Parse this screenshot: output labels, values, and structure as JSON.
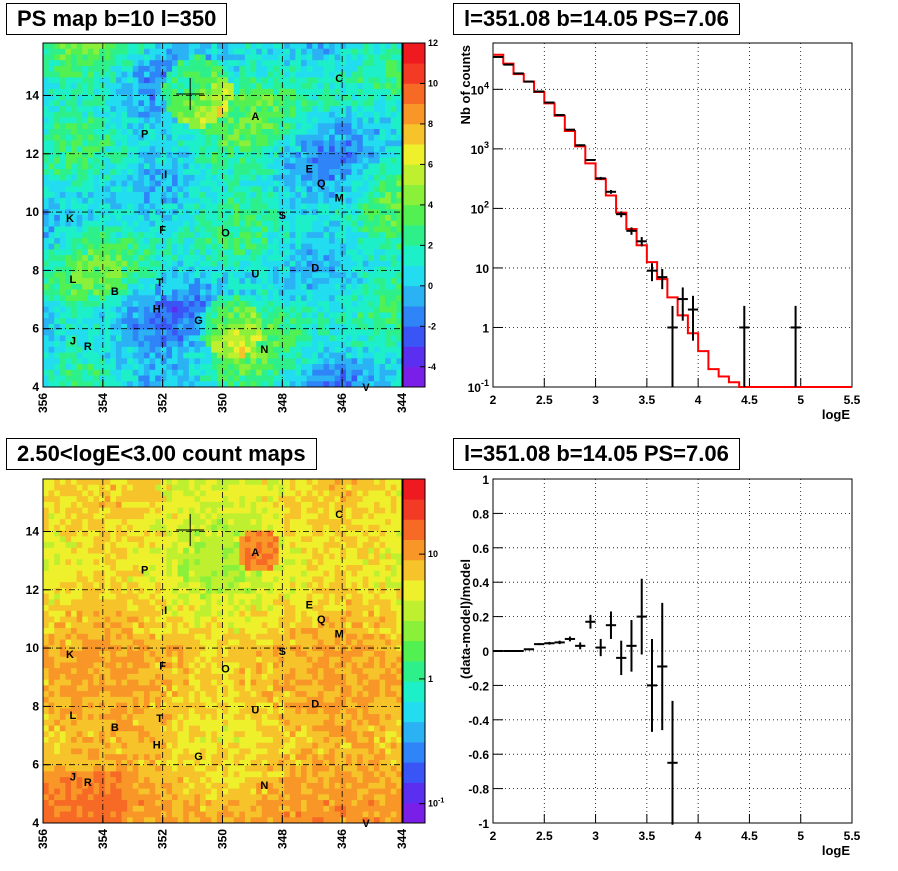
{
  "titles": {
    "map_top": "PS map b=10 l=350",
    "spectrum": "l=351.08 b=14.05 PS=7.06",
    "map_bottom": "2.50<logE<3.00 count maps",
    "residual": "l=351.08 b=14.05 PS=7.06"
  },
  "colors": {
    "model_line": "#ff0000",
    "data_points": "#000000",
    "grid": "#000000"
  },
  "chart_data": [
    {
      "type": "heatmap",
      "id": "ps_map",
      "title": "PS map b=10 l=350",
      "x_ticks": [
        "356",
        "354",
        "352",
        "350",
        "348",
        "346",
        "344"
      ],
      "x_range": [
        356,
        344
      ],
      "y_ticks": [
        "4",
        "6",
        "8",
        "10",
        "12",
        "14"
      ],
      "y_range": [
        4,
        15.8
      ],
      "colorbar": {
        "min": -5,
        "max": 12,
        "ticks": [
          "12",
          "10",
          "8",
          "6",
          "4",
          "2",
          "0",
          "-2",
          "-4"
        ]
      },
      "marker": {
        "l": 351.08,
        "b": 14.05
      },
      "sources": [
        {
          "name": "C",
          "l": 346.1,
          "b": 14.6
        },
        {
          "name": "A",
          "l": 348.9,
          "b": 13.3
        },
        {
          "name": "P",
          "l": 352.6,
          "b": 12.7
        },
        {
          "name": "E",
          "l": 347.1,
          "b": 11.5
        },
        {
          "name": "I",
          "l": 351.9,
          "b": 11.3
        },
        {
          "name": "Q",
          "l": 346.7,
          "b": 11.0
        },
        {
          "name": "M",
          "l": 346.1,
          "b": 10.5
        },
        {
          "name": "S",
          "l": 348.0,
          "b": 9.9
        },
        {
          "name": "K",
          "l": 355.1,
          "b": 9.8
        },
        {
          "name": "F",
          "l": 352.0,
          "b": 9.4
        },
        {
          "name": "O",
          "l": 349.9,
          "b": 9.3
        },
        {
          "name": "D",
          "l": 346.9,
          "b": 8.1
        },
        {
          "name": "U",
          "l": 348.9,
          "b": 7.9
        },
        {
          "name": "L",
          "l": 355.0,
          "b": 7.7
        },
        {
          "name": "T",
          "l": 352.1,
          "b": 7.6
        },
        {
          "name": "B",
          "l": 353.6,
          "b": 7.3
        },
        {
          "name": "H",
          "l": 352.2,
          "b": 6.7
        },
        {
          "name": "G",
          "l": 350.8,
          "b": 6.3
        },
        {
          "name": "J",
          "l": 355.0,
          "b": 5.6
        },
        {
          "name": "R",
          "l": 354.5,
          "b": 5.4
        },
        {
          "name": "N",
          "l": 348.6,
          "b": 5.3
        },
        {
          "name": "V",
          "l": 345.2,
          "b": 4.0
        }
      ]
    },
    {
      "type": "line",
      "id": "spectrum",
      "title": "l=351.08 b=14.05 PS=7.06",
      "xlabel": "logE",
      "ylabel": "Nb of counts",
      "xlim": [
        2,
        5.5
      ],
      "ylim": [
        0.1,
        60000
      ],
      "y_scale": "log",
      "grid": true,
      "x_ticks": [
        "2",
        "2.5",
        "3",
        "3.5",
        "4",
        "4.5",
        "5",
        "5.5"
      ],
      "y_ticks": [
        "10^-1",
        "1",
        "10",
        "10^2",
        "10^3",
        "10^4"
      ],
      "series": [
        {
          "type": "step",
          "x_edges": [
            2.0,
            2.1,
            2.2,
            2.3,
            2.4,
            2.5,
            2.6,
            2.7,
            2.8,
            2.9,
            3.0,
            3.1,
            3.2,
            3.3,
            3.4,
            3.5,
            3.6,
            3.7,
            3.8,
            3.9,
            4.0,
            4.1,
            4.2,
            4.3,
            4.4,
            4.5,
            5.5
          ],
          "values": [
            38000,
            27000,
            18000,
            13500,
            9000,
            5800,
            3600,
            2000,
            1100,
            570,
            310,
            165,
            85,
            45,
            24,
            12.5,
            6.5,
            3.2,
            1.6,
            0.8,
            0.4,
            0.2,
            0.15,
            0.12,
            0.1,
            0.1
          ]
        },
        {
          "type": "errorbars",
          "points": [
            {
              "x": 2.05,
              "y": 35000,
              "lo": 34800,
              "hi": 35200
            },
            {
              "x": 2.15,
              "y": 26000,
              "lo": 25800,
              "hi": 26200
            },
            {
              "x": 2.25,
              "y": 18500,
              "lo": 18300,
              "hi": 18700
            },
            {
              "x": 2.35,
              "y": 13500,
              "lo": 13350,
              "hi": 13650
            },
            {
              "x": 2.45,
              "y": 9200,
              "lo": 9100,
              "hi": 9300
            },
            {
              "x": 2.55,
              "y": 6000,
              "lo": 5920,
              "hi": 6080
            },
            {
              "x": 2.65,
              "y": 3700,
              "lo": 3640,
              "hi": 3760
            },
            {
              "x": 2.75,
              "y": 2100,
              "lo": 2050,
              "hi": 2150
            },
            {
              "x": 2.85,
              "y": 1150,
              "lo": 1110,
              "hi": 1190
            },
            {
              "x": 2.95,
              "y": 650,
              "lo": 625,
              "hi": 675
            },
            {
              "x": 3.05,
              "y": 320,
              "lo": 302,
              "hi": 338
            },
            {
              "x": 3.15,
              "y": 190,
              "lo": 176,
              "hi": 204
            },
            {
              "x": 3.25,
              "y": 80,
              "lo": 71,
              "hi": 89
            },
            {
              "x": 3.35,
              "y": 42,
              "lo": 36,
              "hi": 48
            },
            {
              "x": 3.45,
              "y": 28,
              "lo": 23,
              "hi": 33
            },
            {
              "x": 3.55,
              "y": 9,
              "lo": 6,
              "hi": 12
            },
            {
              "x": 3.65,
              "y": 7,
              "lo": 4.4,
              "hi": 9.6
            },
            {
              "x": 3.75,
              "y": 1,
              "lo": 0.1,
              "hi": 2.3
            },
            {
              "x": 3.85,
              "y": 3,
              "lo": 1.3,
              "hi": 4.7
            },
            {
              "x": 3.95,
              "y": 2,
              "lo": 0.6,
              "hi": 3.4
            },
            {
              "x": 4.45,
              "y": 1,
              "lo": 0.1,
              "hi": 2.3
            },
            {
              "x": 4.95,
              "y": 1,
              "lo": 0.1,
              "hi": 2.3
            }
          ]
        }
      ]
    },
    {
      "type": "heatmap",
      "id": "count_map",
      "title": "2.50<logE<3.00 count maps",
      "x_ticks": [
        "356",
        "354",
        "352",
        "350",
        "348",
        "346",
        "344"
      ],
      "x_range": [
        356,
        344
      ],
      "y_ticks": [
        "4",
        "6",
        "8",
        "10",
        "12",
        "14"
      ],
      "y_range": [
        4,
        15.8
      ],
      "colorbar": {
        "scale": "log",
        "min": 0.07,
        "max": 40,
        "ticks": [
          "10",
          "1",
          "10^-1"
        ]
      },
      "marker": {
        "l": 351.08,
        "b": 14.05
      },
      "same_sources_as": "ps_map"
    },
    {
      "type": "scatter",
      "id": "residual",
      "title": "l=351.08 b=14.05 PS=7.06",
      "xlabel": "logE",
      "ylabel": "(data-model)/model",
      "xlim": [
        2,
        5.5
      ],
      "ylim": [
        -1,
        1
      ],
      "grid": true,
      "x_ticks": [
        "2",
        "2.5",
        "3",
        "3.5",
        "4",
        "4.5",
        "5",
        "5.5"
      ],
      "y_ticks": [
        "-1",
        "-0.8",
        "-0.6",
        "-0.4",
        "-0.2",
        "0",
        "0.2",
        "0.4",
        "0.6",
        "0.8",
        "1"
      ],
      "points": [
        {
          "x": 2.05,
          "y": 0.0,
          "err": 0.003
        },
        {
          "x": 2.15,
          "y": 0.0,
          "err": 0.003
        },
        {
          "x": 2.25,
          "y": 0.0,
          "err": 0.004
        },
        {
          "x": 2.35,
          "y": 0.01,
          "err": 0.005
        },
        {
          "x": 2.45,
          "y": 0.04,
          "err": 0.006
        },
        {
          "x": 2.55,
          "y": 0.045,
          "err": 0.008
        },
        {
          "x": 2.65,
          "y": 0.05,
          "err": 0.01
        },
        {
          "x": 2.75,
          "y": 0.07,
          "err": 0.014
        },
        {
          "x": 2.85,
          "y": 0.03,
          "err": 0.02
        },
        {
          "x": 2.95,
          "y": 0.17,
          "err": 0.04
        },
        {
          "x": 3.05,
          "y": 0.02,
          "err": 0.05
        },
        {
          "x": 3.15,
          "y": 0.15,
          "err": 0.08
        },
        {
          "x": 3.25,
          "y": -0.04,
          "err": 0.1
        },
        {
          "x": 3.35,
          "y": 0.03,
          "err": 0.15
        },
        {
          "x": 3.45,
          "y": 0.2,
          "err": 0.22
        },
        {
          "x": 3.55,
          "y": -0.2,
          "err": 0.27
        },
        {
          "x": 3.65,
          "y": -0.09,
          "err": 0.37
        },
        {
          "x": 3.75,
          "y": -0.65,
          "err": 0.36
        }
      ]
    }
  ]
}
